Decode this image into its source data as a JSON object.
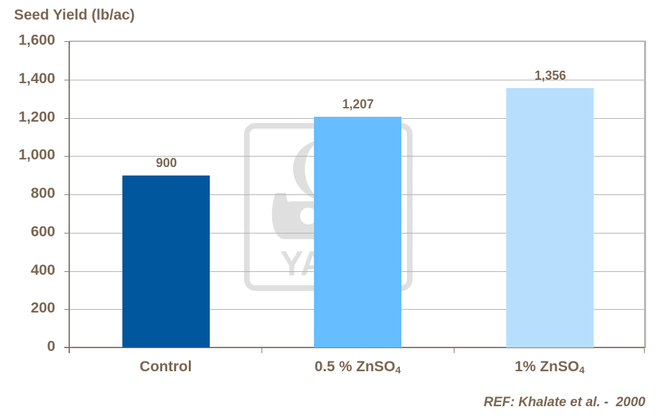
{
  "chart_data": {
    "type": "bar",
    "title": "",
    "ylabel": "Seed Yield (lb/ac)",
    "xlabel": "",
    "categories": [
      "Control",
      "0.5 % ZnSO4",
      "1% ZnSO4"
    ],
    "values": [
      900,
      1207,
      1356
    ],
    "value_labels": [
      "900",
      "1,207",
      "1,356"
    ],
    "colors": [
      "#00579d",
      "#66bdff",
      "#b7dffd"
    ],
    "ylim": [
      0,
      1600
    ],
    "yticks": [
      0,
      200,
      400,
      600,
      800,
      1000,
      1200,
      1400,
      1600
    ],
    "ytick_labels": [
      "0",
      "200",
      "400",
      "600",
      "800",
      "1,000",
      "1,200",
      "1,400",
      "1,600"
    ],
    "grid": true,
    "legend": null,
    "annotations": [
      "REF: Khalate et al. -  2000"
    ],
    "watermark": "YARA"
  },
  "labels": {
    "y_axis_title": "Seed Yield (lb/ac)",
    "categories": [
      {
        "main": "Control",
        "sub": ""
      },
      {
        "main": "0.5 %  ZnSO",
        "sub": "4"
      },
      {
        "main": "1%  ZnSO",
        "sub": "4"
      }
    ],
    "reference": "REF: Khalate et al. -  2000",
    "watermark_text": "YARA"
  }
}
